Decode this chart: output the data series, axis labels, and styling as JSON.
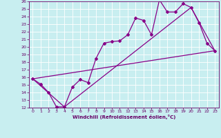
{
  "xlabel": "Windchill (Refroidissement éolien,°C)",
  "xlim": [
    -0.5,
    23.5
  ],
  "ylim": [
    12,
    26
  ],
  "xticks": [
    0,
    1,
    2,
    3,
    4,
    5,
    6,
    7,
    8,
    9,
    10,
    11,
    12,
    13,
    14,
    15,
    16,
    17,
    18,
    19,
    20,
    21,
    22,
    23
  ],
  "yticks": [
    12,
    13,
    14,
    15,
    16,
    17,
    18,
    19,
    20,
    21,
    22,
    23,
    24,
    25,
    26
  ],
  "bg_color": "#c8eef0",
  "line_color": "#880088",
  "line1_x": [
    0,
    1,
    2,
    3,
    4,
    5,
    6,
    7,
    8,
    9,
    10,
    11,
    12,
    13,
    14,
    15,
    16,
    17,
    18,
    19,
    20,
    21,
    22,
    23
  ],
  "line1_y": [
    15.8,
    15.1,
    14.0,
    12.1,
    12.1,
    14.7,
    15.7,
    15.3,
    18.5,
    20.5,
    20.7,
    20.8,
    21.6,
    23.8,
    23.5,
    21.6,
    26.2,
    24.6,
    24.6,
    25.7,
    25.2,
    23.2,
    20.5,
    19.5
  ],
  "line2_x": [
    0,
    23
  ],
  "line2_y": [
    15.8,
    19.5
  ],
  "line3_x": [
    0,
    4,
    20,
    23
  ],
  "line3_y": [
    15.8,
    12.1,
    25.2,
    19.5
  ]
}
